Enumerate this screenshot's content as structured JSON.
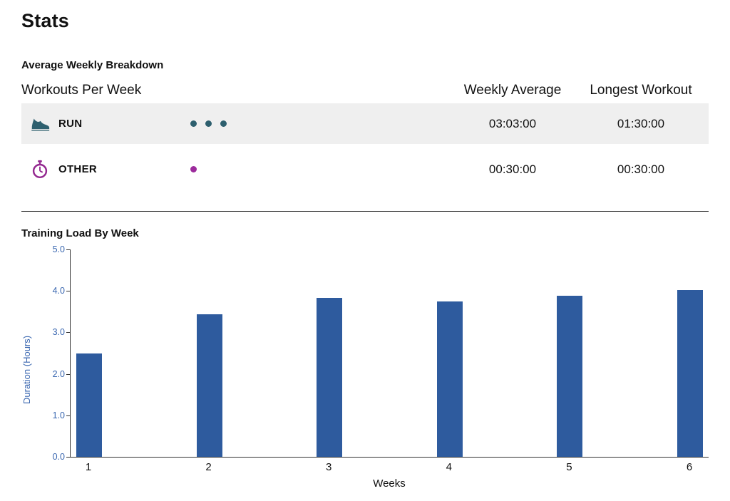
{
  "page": {
    "title": "Stats"
  },
  "breakdown": {
    "heading": "Average Weekly Breakdown",
    "table": {
      "col1_header": "Workouts Per Week",
      "col2_header": "Weekly Average",
      "col3_header": "Longest Workout",
      "rows": [
        {
          "sport": "RUN",
          "icon": "running-shoe-icon",
          "icon_color": "#2d5f6e",
          "dot_count": 3,
          "dot_color": "#2d5f6e",
          "weekly_average": "03:03:00",
          "longest_workout": "01:30:00"
        },
        {
          "sport": "OTHER",
          "icon": "stopwatch-icon",
          "icon_color": "#93278f",
          "dot_count": 1,
          "dot_color": "#9c2b9c",
          "weekly_average": "00:30:00",
          "longest_workout": "00:30:00"
        }
      ]
    }
  },
  "training_load": {
    "heading": "Training Load By Week"
  },
  "chart_data": {
    "type": "bar",
    "title": "Training Load By Week",
    "categories": [
      "1",
      "2",
      "3",
      "4",
      "5",
      "6"
    ],
    "values": [
      2.5,
      3.43,
      3.84,
      3.74,
      3.89,
      4.02
    ],
    "xlabel": "Weeks",
    "ylabel": "Duration (Hours)",
    "ylim": [
      0,
      5
    ],
    "yticks": [
      "0.0",
      "1.0",
      "2.0",
      "3.0",
      "4.0",
      "5.0"
    ],
    "bar_color": "#2e5b9e",
    "axis_label_color": "#3a67b0",
    "grid": false,
    "legend": "none"
  }
}
